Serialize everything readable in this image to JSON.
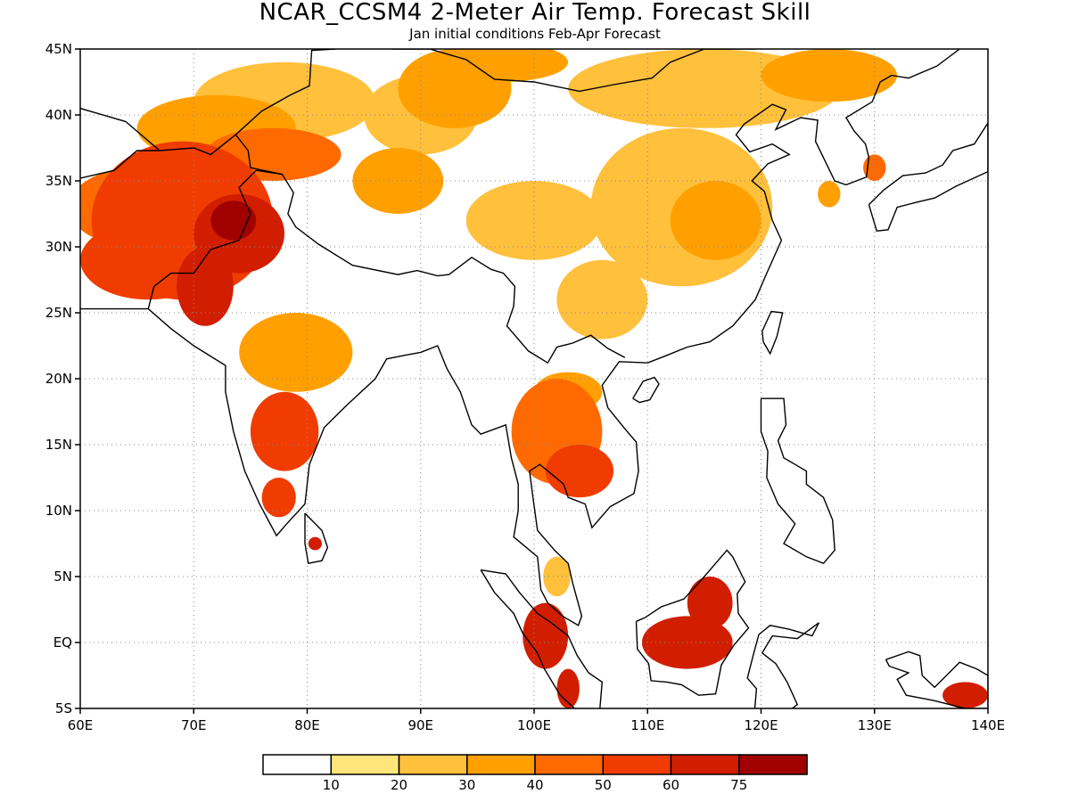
{
  "title": "NCAR_CCSM4 2-Meter Air Temp. Forecast Skill",
  "subtitle": "Jan initial conditions  Feb-Apr Forecast",
  "map": {
    "lon_range": [
      60,
      140
    ],
    "lat_range": [
      -5,
      45
    ],
    "lon_ticks": [
      {
        "value": 60,
        "label": "60E"
      },
      {
        "value": 70,
        "label": "70E"
      },
      {
        "value": 80,
        "label": "80E"
      },
      {
        "value": 90,
        "label": "90E"
      },
      {
        "value": 100,
        "label": "100E"
      },
      {
        "value": 110,
        "label": "110E"
      },
      {
        "value": 120,
        "label": "120E"
      },
      {
        "value": 130,
        "label": "130E"
      },
      {
        "value": 140,
        "label": "140E"
      }
    ],
    "lat_ticks": [
      {
        "value": -5,
        "label": "5S"
      },
      {
        "value": 0,
        "label": "EQ"
      },
      {
        "value": 5,
        "label": "5N"
      },
      {
        "value": 10,
        "label": "10N"
      },
      {
        "value": 15,
        "label": "15N"
      },
      {
        "value": 20,
        "label": "20N"
      },
      {
        "value": 25,
        "label": "25N"
      },
      {
        "value": 30,
        "label": "30N"
      },
      {
        "value": 35,
        "label": "35N"
      },
      {
        "value": 40,
        "label": "40N"
      },
      {
        "value": 45,
        "label": "45N"
      }
    ],
    "gridlines": "dotted",
    "regions": [
      {
        "lon": 73.5,
        "lat": 32,
        "level": 7,
        "rx": 2,
        "ry": 1.5
      },
      {
        "lon": 69,
        "lat": 32,
        "level": 5,
        "rx": 8,
        "ry": 6
      },
      {
        "lon": 74,
        "lat": 31,
        "level": 6,
        "rx": 4,
        "ry": 3
      },
      {
        "lon": 71,
        "lat": 27,
        "level": 6,
        "rx": 2.5,
        "ry": 3
      },
      {
        "lon": 65,
        "lat": 33,
        "level": 4,
        "rx": 6,
        "ry": 3
      },
      {
        "lon": 66,
        "lat": 29,
        "level": 5,
        "rx": 6,
        "ry": 3
      },
      {
        "lon": 77,
        "lat": 37,
        "level": 4,
        "rx": 6,
        "ry": 2
      },
      {
        "lon": 72,
        "lat": 39,
        "level": 3,
        "rx": 7,
        "ry": 2.5
      },
      {
        "lon": 78,
        "lat": 41,
        "level": 2,
        "rx": 8,
        "ry": 3
      },
      {
        "lon": 88,
        "lat": 35,
        "level": 3,
        "rx": 4,
        "ry": 2.5
      },
      {
        "lon": 90,
        "lat": 40,
        "level": 2,
        "rx": 5,
        "ry": 3
      },
      {
        "lon": 93,
        "lat": 42,
        "level": 3,
        "rx": 5,
        "ry": 3
      },
      {
        "lon": 97,
        "lat": 44,
        "level": 3,
        "rx": 6,
        "ry": 1.5
      },
      {
        "lon": 115,
        "lat": 42,
        "level": 2,
        "rx": 12,
        "ry": 3
      },
      {
        "lon": 126,
        "lat": 43,
        "level": 3,
        "rx": 6,
        "ry": 2
      },
      {
        "lon": 113,
        "lat": 33,
        "level": 2,
        "rx": 8,
        "ry": 6
      },
      {
        "lon": 100,
        "lat": 32,
        "level": 2,
        "rx": 6,
        "ry": 3
      },
      {
        "lon": 116,
        "lat": 32,
        "level": 3,
        "rx": 4,
        "ry": 3
      },
      {
        "lon": 106,
        "lat": 26,
        "level": 2,
        "rx": 4,
        "ry": 3
      },
      {
        "lon": 79,
        "lat": 22,
        "level": 3,
        "rx": 5,
        "ry": 3
      },
      {
        "lon": 78,
        "lat": 16,
        "level": 5,
        "rx": 3,
        "ry": 3
      },
      {
        "lon": 77.5,
        "lat": 11,
        "level": 5,
        "rx": 1.5,
        "ry": 1.5
      },
      {
        "lon": 80.7,
        "lat": 7.5,
        "level": 6,
        "rx": 0.6,
        "ry": 0.5
      },
      {
        "lon": 102,
        "lat": 16,
        "level": 4,
        "rx": 4,
        "ry": 4
      },
      {
        "lon": 104,
        "lat": 13,
        "level": 5,
        "rx": 3,
        "ry": 2
      },
      {
        "lon": 103,
        "lat": 19,
        "level": 3,
        "rx": 3,
        "ry": 1.5
      },
      {
        "lon": 102,
        "lat": 5,
        "level": 2,
        "rx": 1.2,
        "ry": 1.5
      },
      {
        "lon": 101,
        "lat": 0.5,
        "level": 6,
        "rx": 2,
        "ry": 2.5
      },
      {
        "lon": 103,
        "lat": -3.5,
        "level": 6,
        "rx": 1,
        "ry": 1.5
      },
      {
        "lon": 113.5,
        "lat": 0,
        "level": 6,
        "rx": 4,
        "ry": 2
      },
      {
        "lon": 115.5,
        "lat": 3,
        "level": 6,
        "rx": 2,
        "ry": 2
      },
      {
        "lon": 138,
        "lat": -4,
        "level": 6,
        "rx": 2,
        "ry": 1
      },
      {
        "lon": 130,
        "lat": 36,
        "level": 4,
        "rx": 1,
        "ry": 1
      },
      {
        "lon": 126,
        "lat": 34,
        "level": 3,
        "rx": 1,
        "ry": 1
      }
    ]
  },
  "legend": {
    "colors": [
      "#ffffff",
      "#ffe57a",
      "#ffc03c",
      "#ffa000",
      "#ff6a00",
      "#f03c00",
      "#d21e00",
      "#a00000"
    ],
    "labels": [
      "10",
      "20",
      "30",
      "40",
      "50",
      "60",
      "75"
    ]
  }
}
